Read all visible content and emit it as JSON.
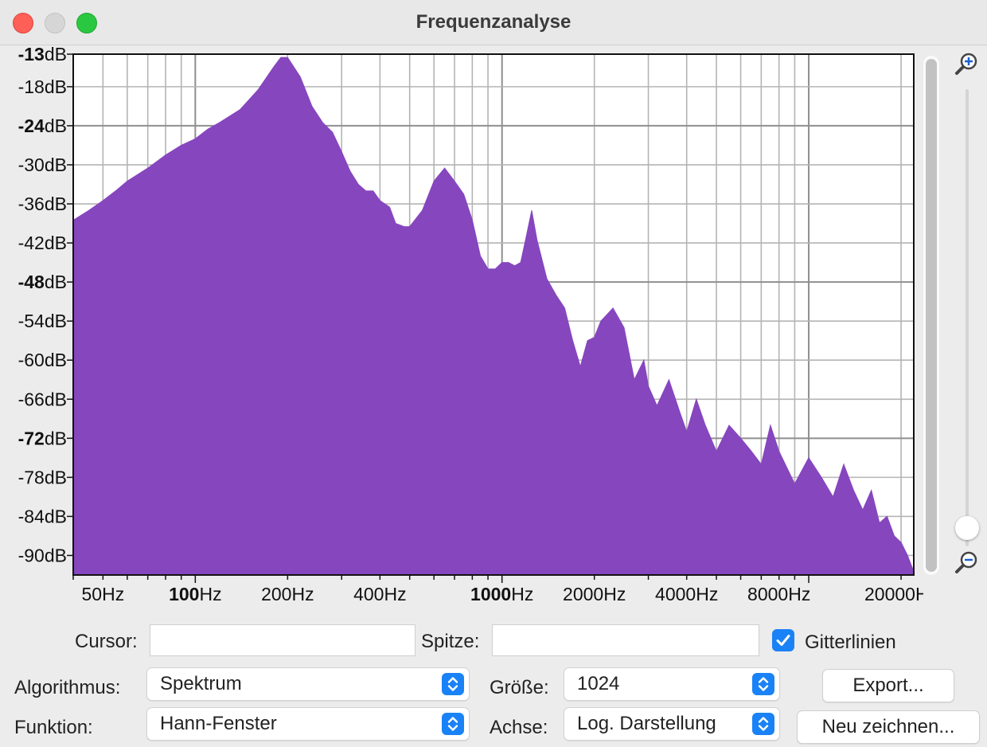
{
  "window": {
    "title": "Frequenzanalyse"
  },
  "chart_data": {
    "type": "area",
    "title": "",
    "xlabel": "",
    "ylabel": "",
    "xscale": "log",
    "xlim": [
      40,
      22000
    ],
    "ylim": [
      -93,
      -13
    ],
    "grid": true,
    "x": [
      40,
      45,
      50,
      55,
      60,
      70,
      80,
      90,
      100,
      110,
      120,
      140,
      160,
      180,
      190,
      200,
      220,
      240,
      260,
      280,
      300,
      320,
      340,
      360,
      380,
      400,
      430,
      450,
      480,
      500,
      550,
      600,
      650,
      700,
      750,
      800,
      850,
      900,
      950,
      1000,
      1050,
      1100,
      1150,
      1200,
      1250,
      1300,
      1400,
      1500,
      1600,
      1700,
      1800,
      1900,
      2000,
      2100,
      2200,
      2300,
      2500,
      2700,
      2900,
      3000,
      3200,
      3500,
      3800,
      4000,
      4300,
      4600,
      5000,
      5500,
      6000,
      6500,
      7000,
      7500,
      8000,
      9000,
      10000,
      11000,
      12000,
      13000,
      14000,
      15000,
      16000,
      17000,
      18000,
      19000,
      20000,
      21000,
      22000
    ],
    "series": [
      {
        "values": [
          -38.5,
          -37,
          -35.5,
          -34,
          -32.5,
          -30.5,
          -28.5,
          -27,
          -26,
          -24.5,
          -23.5,
          -21.5,
          -18.5,
          -15,
          -13.5,
          -13.5,
          -16.5,
          -21,
          -23.5,
          -25,
          -28,
          -31,
          -33,
          -34,
          -34,
          -35.5,
          -36.5,
          -39,
          -39.5,
          -39.5,
          -37,
          -32.5,
          -30.5,
          -32.5,
          -34.5,
          -38.5,
          -44,
          -46,
          -46,
          -45,
          -45,
          -45.5,
          -45,
          -41,
          -37,
          -41.5,
          -47.5,
          -50,
          -52,
          -57,
          -61,
          -57,
          -56.5,
          -54,
          -53,
          -52,
          -55,
          -63,
          -60,
          -64,
          -67,
          -63,
          -68,
          -71,
          -66,
          -70,
          -74,
          -70,
          -72,
          -74,
          -76,
          -70,
          -74,
          -79,
          -75,
          -78,
          -81,
          -76,
          -80,
          -83,
          -80,
          -85,
          -84,
          -87,
          -88,
          -90,
          -92.5
        ]
      }
    ],
    "y_ticks": [
      {
        "value": -13,
        "num": "-13",
        "unit": "dB",
        "bold": true
      },
      {
        "value": -18,
        "num": "-18",
        "unit": "dB",
        "bold": false
      },
      {
        "value": -24,
        "num": "-24",
        "unit": "dB",
        "bold": true
      },
      {
        "value": -30,
        "num": "-30",
        "unit": "dB",
        "bold": false
      },
      {
        "value": -36,
        "num": "-36",
        "unit": "dB",
        "bold": false
      },
      {
        "value": -42,
        "num": "-42",
        "unit": "dB",
        "bold": false
      },
      {
        "value": -48,
        "num": "-48",
        "unit": "dB",
        "bold": true
      },
      {
        "value": -54,
        "num": "-54",
        "unit": "dB",
        "bold": false
      },
      {
        "value": -60,
        "num": "-60",
        "unit": "dB",
        "bold": false
      },
      {
        "value": -66,
        "num": "-66",
        "unit": "dB",
        "bold": false
      },
      {
        "value": -72,
        "num": "-72",
        "unit": "dB",
        "bold": true
      },
      {
        "value": -78,
        "num": "-78",
        "unit": "dB",
        "bold": false
      },
      {
        "value": -84,
        "num": "-84",
        "unit": "dB",
        "bold": false
      },
      {
        "value": -90,
        "num": "-90",
        "unit": "dB",
        "bold": false
      }
    ],
    "x_ticks": [
      {
        "value": 50,
        "num": "50",
        "unit": "Hz",
        "bold": false
      },
      {
        "value": 100,
        "num": "100",
        "unit": "Hz",
        "bold": true
      },
      {
        "value": 200,
        "num": "200",
        "unit": "Hz",
        "bold": false
      },
      {
        "value": 400,
        "num": "400",
        "unit": "Hz",
        "bold": false
      },
      {
        "value": 1000,
        "num": "1000",
        "unit": "Hz",
        "bold": true
      },
      {
        "value": 2000,
        "num": "2000",
        "unit": "Hz",
        "bold": false
      },
      {
        "value": 4000,
        "num": "4000",
        "unit": "Hz",
        "bold": false
      },
      {
        "value": 8000,
        "num": "8000",
        "unit": "Hz",
        "bold": false
      },
      {
        "value": 20000,
        "num": "20000",
        "unit": "Hz",
        "bold": false
      }
    ],
    "fill_color": "#8646be"
  },
  "controls": {
    "cursor_label": "Cursor:",
    "cursor_value": "",
    "peak_label": "Spitze:",
    "peak_value": "",
    "grid_label": "Gitterlinien",
    "grid_checked": true,
    "algorithm_label": "Algorithmus:",
    "algorithm_value": "Spektrum",
    "function_label": "Funktion:",
    "function_value": "Hann-Fenster",
    "size_label": "Größe:",
    "size_value": "1024",
    "axis_label": "Achse:",
    "axis_value": "Log. Darstellung",
    "export_button": "Export...",
    "redraw_button": "Neu zeichnen..."
  },
  "icons": {
    "zoom_in": "zoom-in-icon",
    "zoom_out": "zoom-out-icon"
  },
  "colors": {
    "accent": "#1a82f7",
    "spectrum": "#8646be"
  }
}
